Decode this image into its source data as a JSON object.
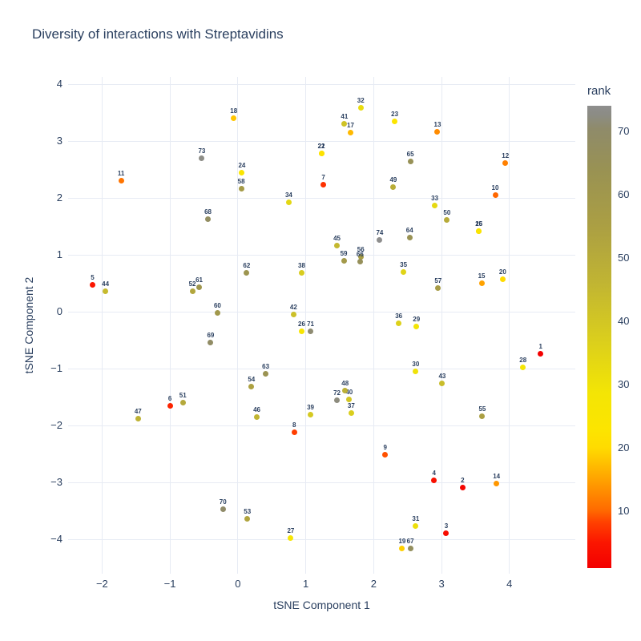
{
  "title": "Diversity of interactions with Streptavidins",
  "theme": {
    "text_color": "#2a3f5f",
    "grid_color": "#e7ebf4",
    "background": "#ffffff"
  },
  "x_axis": {
    "label": "tSNE Component 1",
    "ticks": [
      {
        "value": -2,
        "label": "−2"
      },
      {
        "value": -1,
        "label": "−1"
      },
      {
        "value": 0,
        "label": "0"
      },
      {
        "value": 1,
        "label": "1"
      },
      {
        "value": 2,
        "label": "2"
      },
      {
        "value": 3,
        "label": "3"
      },
      {
        "value": 4,
        "label": "4"
      }
    ]
  },
  "y_axis": {
    "label": "tSNE Component 2",
    "ticks": [
      {
        "value": 4,
        "label": "4"
      },
      {
        "value": 3,
        "label": "3"
      },
      {
        "value": 2,
        "label": "2"
      },
      {
        "value": 1,
        "label": "1"
      },
      {
        "value": 0,
        "label": "0"
      },
      {
        "value": -1,
        "label": "−1"
      },
      {
        "value": -2,
        "label": "−2"
      },
      {
        "value": -3,
        "label": "−3"
      },
      {
        "value": -4,
        "label": "−4"
      }
    ]
  },
  "colorbar": {
    "title": "rank",
    "min": 1,
    "max": 74,
    "ticks": [
      10,
      20,
      30,
      40,
      50,
      60,
      70
    ],
    "stops": [
      {
        "t": 0.0,
        "c": "#f30000"
      },
      {
        "t": 0.055,
        "c": "#fb1600"
      },
      {
        "t": 0.1,
        "c": "#ff4200"
      },
      {
        "t": 0.125,
        "c": "#ff6a00"
      },
      {
        "t": 0.19,
        "c": "#ffa100"
      },
      {
        "t": 0.26,
        "c": "#ffdb00"
      },
      {
        "t": 0.3,
        "c": "#fce500"
      },
      {
        "t": 0.38,
        "c": "#f3e505"
      },
      {
        "t": 0.5,
        "c": "#d9cd1e"
      },
      {
        "t": 0.62,
        "c": "#c0b433"
      },
      {
        "t": 0.74,
        "c": "#ab9f43"
      },
      {
        "t": 0.86,
        "c": "#999253"
      },
      {
        "t": 0.95,
        "c": "#8f8b6a"
      },
      {
        "t": 0.98,
        "c": "#8c8c84"
      },
      {
        "t": 1.0,
        "c": "#8e8e8e"
      }
    ]
  },
  "chart_data": {
    "type": "scatter",
    "title": "Diversity of interactions with Streptavidins",
    "xlabel": "tSNE Component 1",
    "ylabel": "tSNE Component 2",
    "x_range": [
      -2.5,
      4.97
    ],
    "y_range": [
      -4.6,
      4.13
    ],
    "grid": true,
    "color_by": "rank",
    "legend_position": "right-colorbar",
    "points": [
      {
        "rank": 1,
        "x": 4.46,
        "y": -0.74
      },
      {
        "rank": 2,
        "x": 3.31,
        "y": -3.09
      },
      {
        "rank": 3,
        "x": 3.07,
        "y": -3.89
      },
      {
        "rank": 4,
        "x": 2.89,
        "y": -2.96
      },
      {
        "rank": 5,
        "x": -2.14,
        "y": 0.47
      },
      {
        "rank": 6,
        "x": -1.0,
        "y": -1.65
      },
      {
        "rank": 7,
        "x": 1.26,
        "y": 2.23
      },
      {
        "rank": 8,
        "x": 0.83,
        "y": -2.12
      },
      {
        "rank": 9,
        "x": 2.17,
        "y": -2.51
      },
      {
        "rank": 10,
        "x": 3.79,
        "y": 2.06
      },
      {
        "rank": 11,
        "x": -1.72,
        "y": 2.31
      },
      {
        "rank": 12,
        "x": 3.94,
        "y": 2.62
      },
      {
        "rank": 13,
        "x": 2.94,
        "y": 3.16
      },
      {
        "rank": 14,
        "x": 3.81,
        "y": -3.01
      },
      {
        "rank": 15,
        "x": 3.59,
        "y": 0.51
      },
      {
        "rank": 16,
        "x": 3.55,
        "y": 1.42
      },
      {
        "rank": 17,
        "x": 1.66,
        "y": 3.15
      },
      {
        "rank": 18,
        "x": -0.06,
        "y": 3.4
      },
      {
        "rank": 19,
        "x": 2.42,
        "y": -4.16
      },
      {
        "rank": 20,
        "x": 3.9,
        "y": 0.57
      },
      {
        "rank": 21,
        "x": 1.23,
        "y": 2.78
      },
      {
        "rank": 22,
        "x": 1.23,
        "y": 2.78
      },
      {
        "rank": 23,
        "x": 2.31,
        "y": 3.35
      },
      {
        "rank": 24,
        "x": 0.06,
        "y": 2.45
      },
      {
        "rank": 25,
        "x": 3.55,
        "y": 1.42
      },
      {
        "rank": 26,
        "x": 0.94,
        "y": -0.34
      },
      {
        "rank": 27,
        "x": 0.78,
        "y": -3.97
      },
      {
        "rank": 28,
        "x": 4.2,
        "y": -0.97
      },
      {
        "rank": 29,
        "x": 2.63,
        "y": -0.25
      },
      {
        "rank": 30,
        "x": 2.62,
        "y": -1.04
      },
      {
        "rank": 31,
        "x": 2.62,
        "y": -3.76
      },
      {
        "rank": 32,
        "x": 1.81,
        "y": 3.59
      },
      {
        "rank": 33,
        "x": 2.9,
        "y": 1.87
      },
      {
        "rank": 34,
        "x": 0.75,
        "y": 1.92
      },
      {
        "rank": 35,
        "x": 2.44,
        "y": 0.7
      },
      {
        "rank": 36,
        "x": 2.37,
        "y": -0.2
      },
      {
        "rank": 37,
        "x": 1.67,
        "y": -1.78
      },
      {
        "rank": 38,
        "x": 0.94,
        "y": 0.69
      },
      {
        "rank": 39,
        "x": 1.07,
        "y": -1.8
      },
      {
        "rank": 40,
        "x": 1.64,
        "y": -1.54
      },
      {
        "rank": 41,
        "x": 1.57,
        "y": 3.3
      },
      {
        "rank": 42,
        "x": 0.82,
        "y": -0.04
      },
      {
        "rank": 43,
        "x": 3.01,
        "y": -1.25
      },
      {
        "rank": 44,
        "x": -1.95,
        "y": 0.37
      },
      {
        "rank": 45,
        "x": 1.46,
        "y": 1.17
      },
      {
        "rank": 46,
        "x": 0.28,
        "y": -1.85
      },
      {
        "rank": 47,
        "x": -1.47,
        "y": -1.87
      },
      {
        "rank": 48,
        "x": 1.58,
        "y": -1.38
      },
      {
        "rank": 49,
        "x": 2.29,
        "y": 2.19
      },
      {
        "rank": 50,
        "x": 3.08,
        "y": 1.61
      },
      {
        "rank": 51,
        "x": -0.81,
        "y": -1.59
      },
      {
        "rank": 52,
        "x": -0.67,
        "y": 0.37
      },
      {
        "rank": 53,
        "x": 0.14,
        "y": -3.64
      },
      {
        "rank": 54,
        "x": 0.2,
        "y": -1.31
      },
      {
        "rank": 55,
        "x": 3.6,
        "y": -1.83
      },
      {
        "rank": 56,
        "x": 1.81,
        "y": 0.97
      },
      {
        "rank": 57,
        "x": 2.95,
        "y": 0.42
      },
      {
        "rank": 58,
        "x": 0.05,
        "y": 2.16
      },
      {
        "rank": 59,
        "x": 1.56,
        "y": 0.9
      },
      {
        "rank": 60,
        "x": -0.3,
        "y": -0.01
      },
      {
        "rank": 61,
        "x": -0.57,
        "y": 0.44
      },
      {
        "rank": 62,
        "x": 0.13,
        "y": 0.69
      },
      {
        "rank": 63,
        "x": 0.41,
        "y": -1.08
      },
      {
        "rank": 64,
        "x": 2.53,
        "y": 1.3
      },
      {
        "rank": 65,
        "x": 2.54,
        "y": 2.64
      },
      {
        "rank": 66,
        "x": 1.8,
        "y": 0.88
      },
      {
        "rank": 67,
        "x": 2.54,
        "y": -4.16
      },
      {
        "rank": 68,
        "x": -0.44,
        "y": 1.63
      },
      {
        "rank": 69,
        "x": -0.4,
        "y": -0.54
      },
      {
        "rank": 70,
        "x": -0.22,
        "y": -3.47
      },
      {
        "rank": 71,
        "x": 1.07,
        "y": -0.34
      },
      {
        "rank": 72,
        "x": 1.46,
        "y": -1.55
      },
      {
        "rank": 73,
        "x": -0.53,
        "y": 2.7
      },
      {
        "rank": 74,
        "x": 2.09,
        "y": 1.27
      }
    ]
  }
}
